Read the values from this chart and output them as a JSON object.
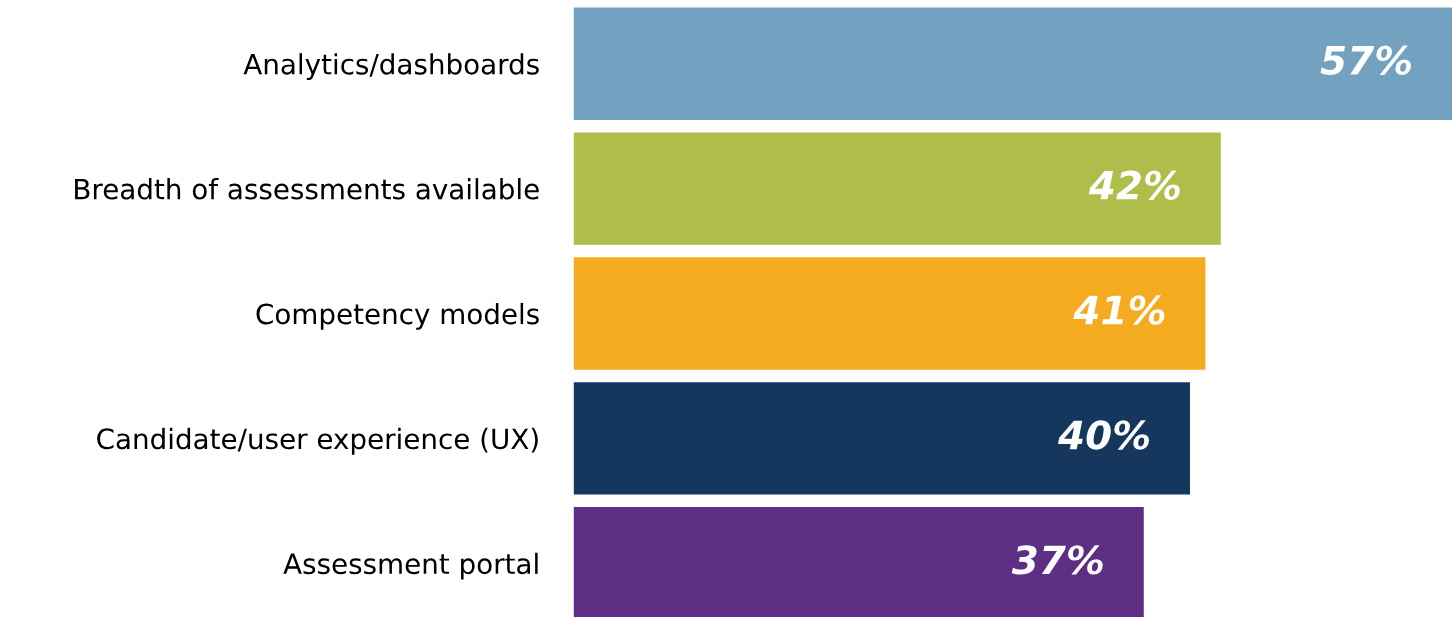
{
  "chart_data": {
    "type": "bar",
    "orientation": "horizontal",
    "categories": [
      "Analytics/dashboards",
      "Breadth of assessments available",
      "Competency models",
      "Candidate/user experience (UX)",
      "Assessment portal"
    ],
    "values": [
      57,
      42,
      41,
      40,
      37
    ],
    "colors": [
      "#73a2c0",
      "#afbe4a",
      "#f5ab1f",
      "#15375e",
      "#5e2d84"
    ],
    "value_labels": [
      "57%",
      "42%",
      "41%",
      "40%",
      "37%"
    ],
    "grid": false,
    "legend": false,
    "tick_labels": "y"
  }
}
